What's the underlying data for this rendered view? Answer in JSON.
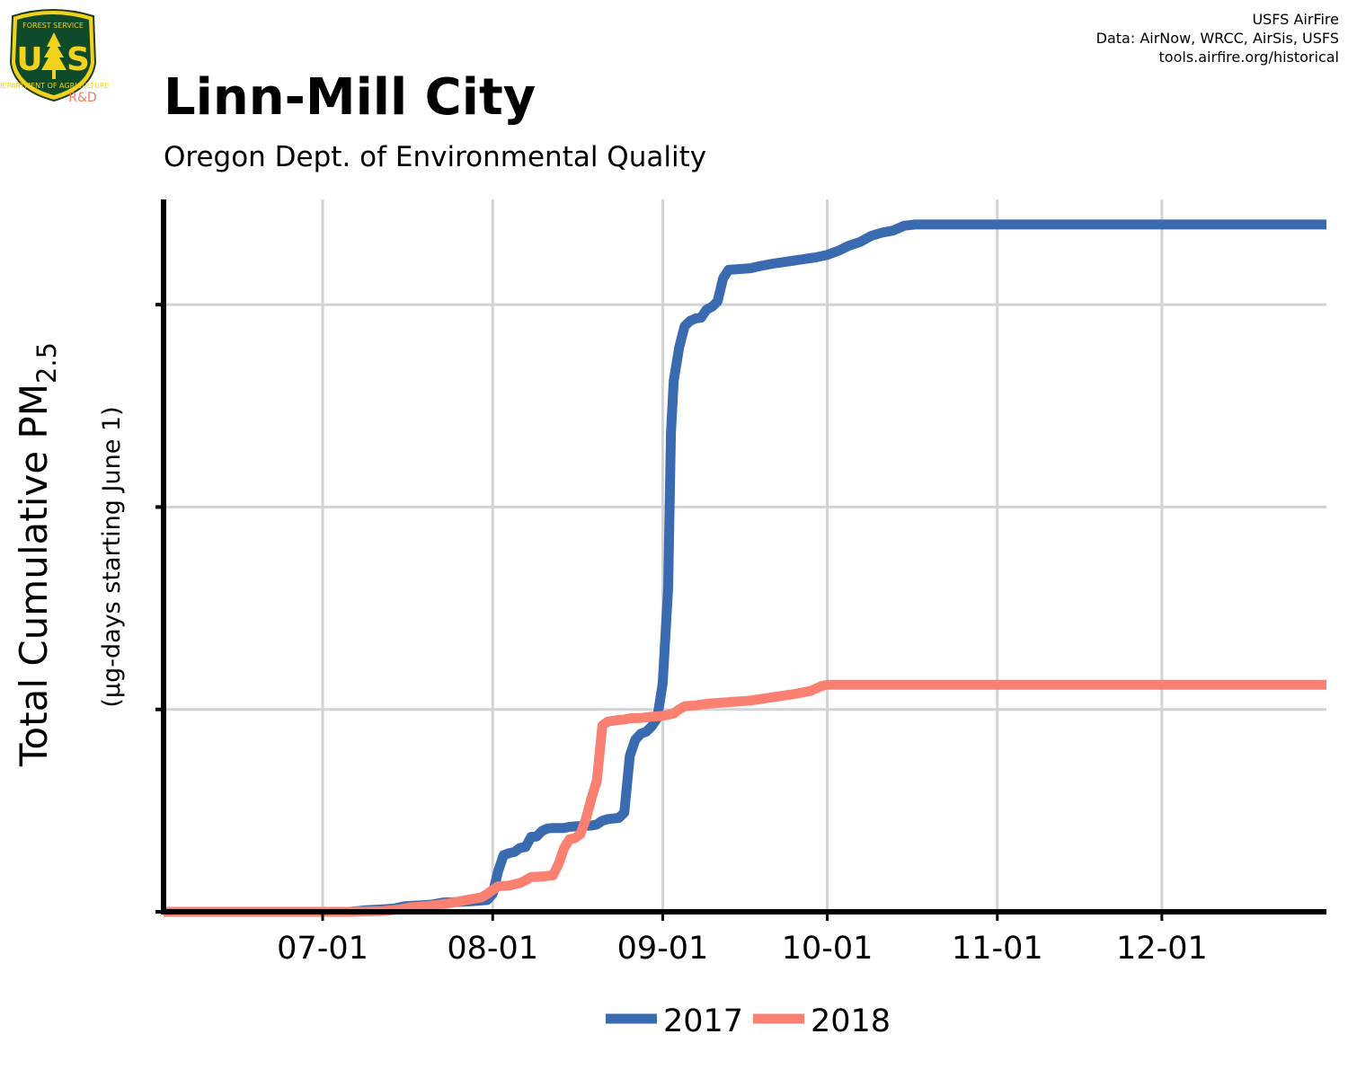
{
  "logo": {
    "org_top": "FOREST SERVICE",
    "letters_left": "U",
    "letters_right": "S",
    "org_bottom": "DEPARTMENT OF AGRICULTURE",
    "division": "R&D"
  },
  "credits": [
    "USFS AirFire",
    "Data: AirNow, WRCC, AirSis, USFS",
    "tools.airfire.org/historical"
  ],
  "chart_data": {
    "type": "line",
    "title": "Linn-Mill City",
    "subtitle": "Oregon Dept. of Environmental Quality",
    "ylabel_main": "Total Cumulative PM",
    "ylabel_sub_script": "2.5",
    "ylabel_secondary": "(µg-days starting June 1)",
    "xticks": [
      "07-01",
      "08-01",
      "09-01",
      "10-01",
      "11-01",
      "12-01"
    ],
    "xtick_days": [
      30,
      61,
      92,
      122,
      153,
      183
    ],
    "x_unit": "days since June 1",
    "xlim": [
      1,
      213
    ],
    "ylim": [
      0,
      1760
    ],
    "y_gridlines": [
      0,
      500,
      1000,
      1500
    ],
    "grid": true,
    "legend_position": "bottom",
    "series": [
      {
        "name": "2017",
        "color": "#3a6ab0",
        "points": [
          [
            1,
            0
          ],
          [
            35,
            0
          ],
          [
            38,
            4
          ],
          [
            41,
            6
          ],
          [
            43,
            8
          ],
          [
            45,
            14
          ],
          [
            48,
            16
          ],
          [
            50,
            18
          ],
          [
            52,
            23
          ],
          [
            54,
            24
          ],
          [
            57,
            26
          ],
          [
            59,
            28
          ],
          [
            60,
            29
          ],
          [
            61,
            44
          ],
          [
            62,
            100
          ],
          [
            63,
            140
          ],
          [
            64,
            145
          ],
          [
            65,
            148
          ],
          [
            66,
            158
          ],
          [
            67,
            160
          ],
          [
            68,
            185
          ],
          [
            69,
            186
          ],
          [
            70,
            200
          ],
          [
            71,
            206
          ],
          [
            72,
            207
          ],
          [
            74,
            207
          ],
          [
            75,
            210
          ],
          [
            77,
            212
          ],
          [
            79,
            213
          ],
          [
            80,
            216
          ],
          [
            81,
            225
          ],
          [
            82,
            229
          ],
          [
            84,
            232
          ],
          [
            85,
            245
          ],
          [
            86,
            385
          ],
          [
            87,
            425
          ],
          [
            88,
            440
          ],
          [
            89,
            445
          ],
          [
            90,
            458
          ],
          [
            91,
            478
          ],
          [
            92,
            564
          ],
          [
            93,
            800
          ],
          [
            93.5,
            1183
          ],
          [
            94,
            1312
          ],
          [
            95,
            1395
          ],
          [
            96,
            1447
          ],
          [
            97,
            1460
          ],
          [
            98,
            1466
          ],
          [
            99,
            1468
          ],
          [
            100,
            1488
          ],
          [
            101,
            1495
          ],
          [
            102,
            1508
          ],
          [
            103,
            1565
          ],
          [
            104,
            1586
          ],
          [
            106,
            1588
          ],
          [
            108,
            1590
          ],
          [
            110,
            1596
          ],
          [
            112,
            1601
          ],
          [
            114,
            1605
          ],
          [
            116,
            1609
          ],
          [
            118,
            1613
          ],
          [
            120,
            1617
          ],
          [
            122,
            1623
          ],
          [
            124,
            1633
          ],
          [
            126,
            1646
          ],
          [
            128,
            1655
          ],
          [
            130,
            1670
          ],
          [
            132,
            1678
          ],
          [
            134,
            1683
          ],
          [
            136,
            1695
          ],
          [
            138,
            1698
          ],
          [
            213,
            1698
          ]
        ]
      },
      {
        "name": "2018",
        "color": "#fa8072",
        "points": [
          [
            1,
            0
          ],
          [
            35,
            0
          ],
          [
            41,
            2
          ],
          [
            44,
            6
          ],
          [
            46,
            11
          ],
          [
            49,
            14
          ],
          [
            51,
            17
          ],
          [
            53,
            21
          ],
          [
            55,
            26
          ],
          [
            57,
            31
          ],
          [
            59,
            36
          ],
          [
            60,
            44
          ],
          [
            61,
            54
          ],
          [
            62,
            63
          ],
          [
            64,
            65
          ],
          [
            66,
            71
          ],
          [
            67,
            78
          ],
          [
            68,
            86
          ],
          [
            70,
            87
          ],
          [
            72,
            90
          ],
          [
            73,
            118
          ],
          [
            74,
            157
          ],
          [
            75,
            179
          ],
          [
            76,
            182
          ],
          [
            77,
            192
          ],
          [
            78,
            230
          ],
          [
            79,
            280
          ],
          [
            80,
            325
          ],
          [
            81,
            460
          ],
          [
            82,
            470
          ],
          [
            84,
            474
          ],
          [
            85,
            475
          ],
          [
            86,
            478
          ],
          [
            88,
            479
          ],
          [
            90,
            482
          ],
          [
            92,
            484
          ],
          [
            94,
            490
          ],
          [
            95,
            500
          ],
          [
            96,
            508
          ],
          [
            98,
            510
          ],
          [
            100,
            514
          ],
          [
            104,
            518
          ],
          [
            108,
            522
          ],
          [
            112,
            530
          ],
          [
            116,
            538
          ],
          [
            119,
            546
          ],
          [
            121,
            558
          ],
          [
            122,
            561
          ],
          [
            213,
            561
          ]
        ]
      }
    ]
  }
}
